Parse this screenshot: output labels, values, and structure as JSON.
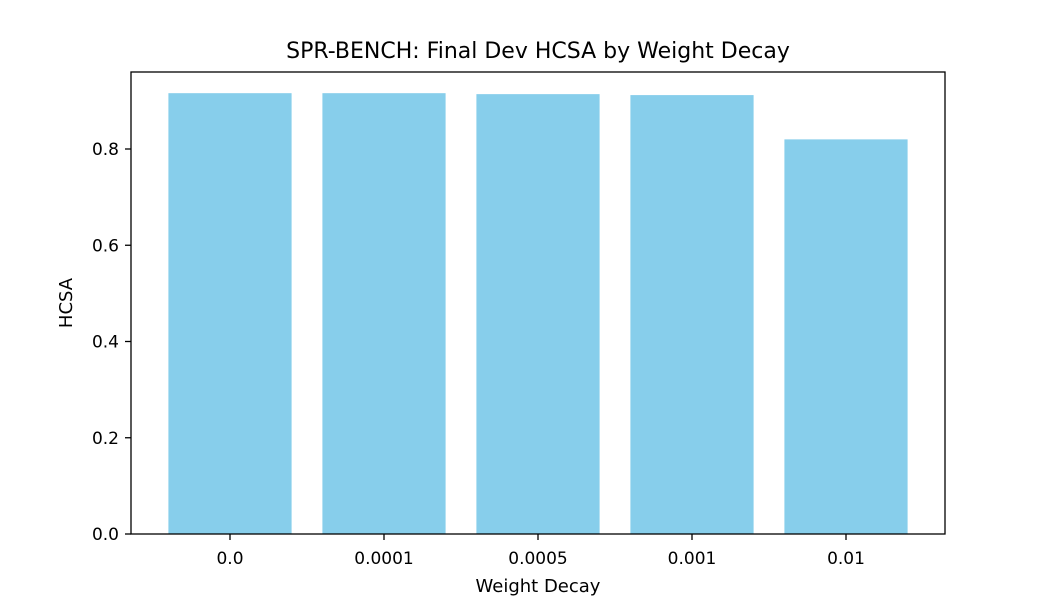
{
  "chart_data": {
    "type": "bar",
    "title": "SPR-BENCH: Final Dev HCSA by Weight Decay",
    "xlabel": "Weight Decay",
    "ylabel": "HCSA",
    "categories": [
      "0.0",
      "0.0001",
      "0.0005",
      "0.001",
      "0.01"
    ],
    "values": [
      0.916,
      0.916,
      0.914,
      0.912,
      0.82
    ],
    "ylim": [
      0,
      0.96
    ],
    "yticks": [
      0.0,
      0.2,
      0.4,
      0.6,
      0.8
    ],
    "ytick_labels": [
      "0.0",
      "0.2",
      "0.4",
      "0.6",
      "0.8"
    ],
    "bar_color": "#87ceeb",
    "grid": false
  }
}
